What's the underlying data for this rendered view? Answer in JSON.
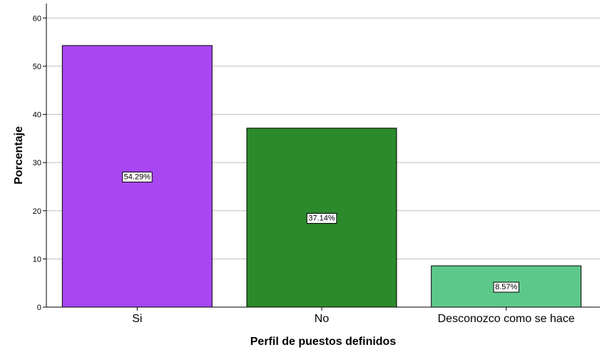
{
  "chart_data": {
    "type": "bar",
    "categories": [
      "Si",
      "No",
      "Desconozco como se hace"
    ],
    "values": [
      54.29,
      37.14,
      8.57
    ],
    "data_labels": [
      "54.29%",
      "37.14%",
      "8.57%"
    ],
    "colors": [
      "#a846f2",
      "#2b8a2b",
      "#5cc98a"
    ],
    "xlabel": "Perfil de puestos definidos",
    "ylabel": "Porcentaje",
    "ylim": [
      0,
      63
    ],
    "yticks": [
      0,
      10,
      20,
      30,
      40,
      50,
      60
    ],
    "grid": true
  }
}
